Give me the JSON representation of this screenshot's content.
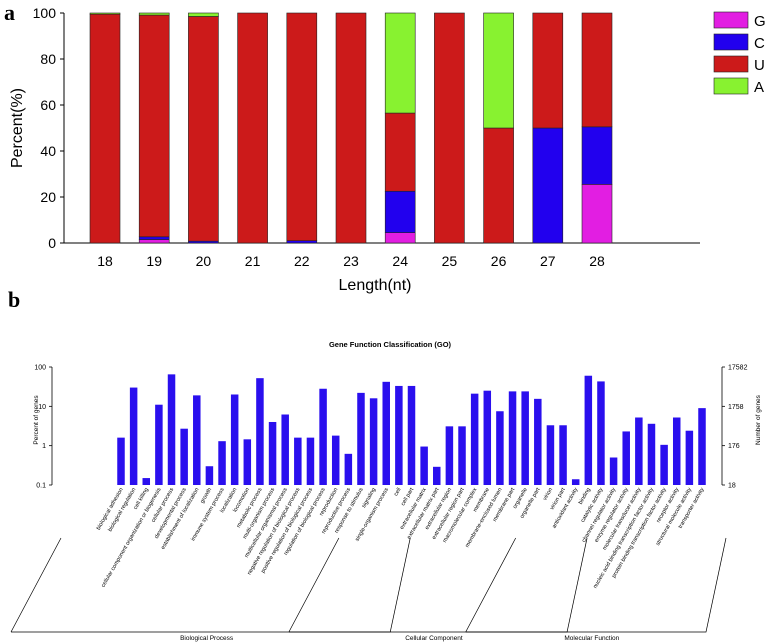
{
  "panels": {
    "a": {
      "label": "a"
    },
    "b": {
      "label": "b"
    }
  },
  "colors": {
    "G": "#e21ee2",
    "C": "#2200ee",
    "U": "#cc1a1a",
    "A": "#88f230",
    "bars_b": "#2a0fee",
    "stroke": "#222222"
  },
  "chart_data": [
    {
      "type": "bar",
      "stacked": true,
      "title": "",
      "xlabel": "Length(nt)",
      "ylabel": "Percent(%)",
      "ylim": [
        0,
        100
      ],
      "yticks": [
        "0",
        "20",
        "40",
        "60",
        "80",
        "100"
      ],
      "categories": [
        "18",
        "19",
        "20",
        "21",
        "22",
        "23",
        "24",
        "25",
        "26",
        "27",
        "28"
      ],
      "legend_position": "top-right",
      "legend": [
        "G",
        "C",
        "U",
        "A"
      ],
      "series": [
        {
          "name": "G",
          "values": [
            0,
            1.5,
            0,
            0,
            0,
            0,
            4.5,
            0,
            0,
            0,
            25.5
          ]
        },
        {
          "name": "C",
          "values": [
            0,
            1.2,
            0.8,
            0,
            1,
            0,
            18,
            0,
            0,
            50,
            25
          ]
        },
        {
          "name": "U",
          "values": [
            99.5,
            96.4,
            97.7,
            100,
            99,
            100,
            34,
            100,
            50,
            50,
            49.5
          ]
        },
        {
          "name": "A",
          "values": [
            0.5,
            0.9,
            1.5,
            0,
            0,
            0,
            43.5,
            0,
            50,
            0,
            0
          ]
        }
      ]
    },
    {
      "type": "bar",
      "title": "Gene Function Classification (GO)",
      "ylabel": "Percent of genes",
      "y2label": "Number of genes",
      "yscale": "log",
      "ylim": [
        0.1,
        100
      ],
      "yticks": [
        "0.1",
        "1",
        "10",
        "100"
      ],
      "y2ticks": [
        "18",
        "176",
        "1758",
        "17582"
      ],
      "categories": [
        "biological adhesion",
        "biological regulation",
        "cell killing",
        "cellular component organization or biogenesis",
        "cellular process",
        "developmental process",
        "establishment of localization",
        "growth",
        "immune system process",
        "localization",
        "locomotion",
        "metabolic process",
        "multi-organism process",
        "multicellular organismal process",
        "negative regulation of biological process",
        "positive regulation of biological process",
        "regulation of biological process",
        "reproduction",
        "reproductive process",
        "response to stimulus",
        "signaling",
        "single-organism process",
        "cell",
        "cell part",
        "extracellular matrix",
        "extracellular matrix part",
        "extracellular region",
        "extracellular region part",
        "macromolecular complex",
        "membrane",
        "membrane-enclosed lumen",
        "membrane part",
        "organelle",
        "organelle part",
        "virion",
        "virion part",
        "antioxidant activity",
        "binding",
        "catalytic activity",
        "channel regulator activity",
        "enzyme regulator activity",
        "molecular transducer activity",
        "nucleic acid binding transcription factor activity",
        "protein binding transcription factor activity",
        "receptor activity",
        "structural molecule activity",
        "transporter activity"
      ],
      "values": [
        1.6,
        30,
        0.15,
        11,
        65,
        2.7,
        19,
        0.3,
        1.3,
        20,
        1.45,
        52,
        4,
        6.2,
        1.6,
        1.6,
        28,
        1.8,
        0.62,
        22,
        16,
        42,
        33,
        33,
        0.95,
        0.29,
        3.1,
        3.1,
        21,
        25,
        7.5,
        24,
        24,
        15.5,
        3.3,
        3.3,
        0.14,
        60,
        43,
        0.5,
        2.3,
        5.2,
        3.6,
        1.05,
        5.2,
        2.4,
        9
      ],
      "groups": [
        {
          "name": "Biological Process",
          "start": 0,
          "end": 21
        },
        {
          "name": "Cellular Component",
          "start": 22,
          "end": 35
        },
        {
          "name": "Molecular Function",
          "start": 36,
          "end": 46
        }
      ]
    }
  ]
}
